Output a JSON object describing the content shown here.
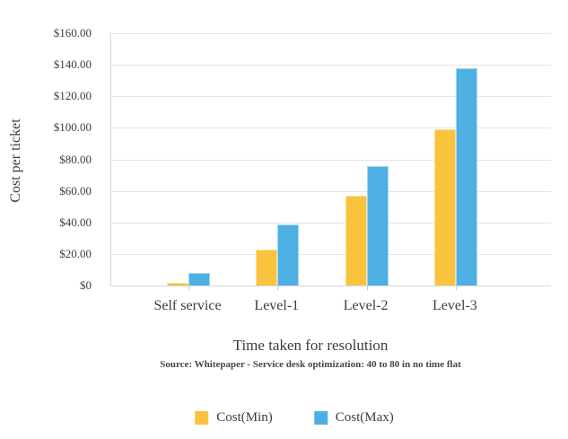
{
  "chart_data": {
    "type": "bar",
    "categories": [
      "Self service",
      "Level-1",
      "Level-2",
      "Level-3"
    ],
    "series": [
      {
        "name": "Cost(Min)",
        "color": "#F9C33D",
        "values": [
          2,
          23,
          57,
          99
        ]
      },
      {
        "name": "Cost(Max)",
        "color": "#4EB0E2",
        "values": [
          8,
          39,
          76,
          138
        ]
      }
    ],
    "xlabel": "Time taken for resolution",
    "ylabel": "Cost per ticket",
    "source_note": "Source: Whitepaper - Service desk optimization: 40 to 80 in no time flat",
    "ylim": [
      0,
      160
    ],
    "y_ticks": [
      {
        "value": 160,
        "label": "$160.00"
      },
      {
        "value": 140,
        "label": "$140.00"
      },
      {
        "value": 120,
        "label": "$120.00"
      },
      {
        "value": 100,
        "label": "$100.00"
      },
      {
        "value": 80,
        "label": "$80.00"
      },
      {
        "value": 60,
        "label": "$60.00"
      },
      {
        "value": 40,
        "label": "$40.00"
      },
      {
        "value": 20,
        "label": "$20.00"
      },
      {
        "value": 0,
        "label": "$0"
      }
    ],
    "grid": true,
    "legend_position": "bottom",
    "colors": {
      "grid": "#e4e4ea",
      "axis": "#d7d7de",
      "text": "#3c3c48"
    }
  }
}
